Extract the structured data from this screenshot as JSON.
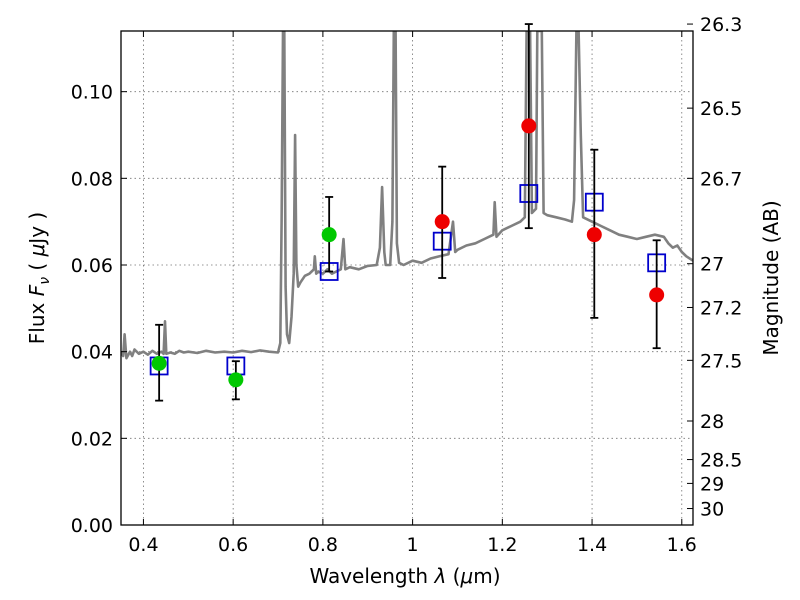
{
  "chart_data": {
    "type": "scatter",
    "xlabel_prefix": "Wavelength  ",
    "xlabel_symbol": "λ",
    "xlabel_unit_open": " (",
    "xlabel_unit": "μ",
    "xlabel_unit_close": "m)",
    "ylabel_prefix": "Flux  ",
    "ylabel_symbol": "F",
    "ylabel_subscript": "ν",
    "ylabel_unit_open": "  ( ",
    "ylabel_unit": "μ",
    "ylabel_unit_close": "Jy )",
    "y2label": "Magnitude (AB)",
    "xlim": [
      0.35,
      1.625
    ],
    "ylim": [
      0.0,
      0.114
    ],
    "grid": true,
    "colors": {
      "spectrum": "#808080",
      "model": "#0000cc",
      "green": "#00c800",
      "red": "#ee0000",
      "error": "#000000"
    },
    "x_ticks": [
      {
        "value": 0.4,
        "label": "0.4"
      },
      {
        "value": 0.6,
        "label": "0.6"
      },
      {
        "value": 0.8,
        "label": "0.8"
      },
      {
        "value": 1.0,
        "label": "1"
      },
      {
        "value": 1.2,
        "label": "1.2"
      },
      {
        "value": 1.4,
        "label": "1.4"
      },
      {
        "value": 1.6,
        "label": "1.6"
      }
    ],
    "y_ticks": [
      {
        "value": 0.0,
        "label": "0.00"
      },
      {
        "value": 0.02,
        "label": "0.02"
      },
      {
        "value": 0.04,
        "label": "0.04"
      },
      {
        "value": 0.06,
        "label": "0.06"
      },
      {
        "value": 0.08,
        "label": "0.08"
      },
      {
        "value": 0.1,
        "label": "0.10"
      }
    ],
    "mag_ticks": [
      {
        "value": 0.1156,
        "label": "26.3"
      },
      {
        "value": 0.0962,
        "label": "26.5"
      },
      {
        "value": 0.08,
        "label": "26.7"
      },
      {
        "value": 0.0603,
        "label": "27"
      },
      {
        "value": 0.0502,
        "label": "27.2"
      },
      {
        "value": 0.038,
        "label": "27.5"
      },
      {
        "value": 0.024,
        "label": "28"
      },
      {
        "value": 0.0151,
        "label": "28.5"
      },
      {
        "value": 0.0096,
        "label": "29"
      },
      {
        "value": 0.0038,
        "label": "30"
      }
    ],
    "model_points": [
      {
        "x": 0.435,
        "y": 0.0367
      },
      {
        "x": 0.606,
        "y": 0.0367
      },
      {
        "x": 0.814,
        "y": 0.0585
      },
      {
        "x": 1.066,
        "y": 0.0655
      },
      {
        "x": 1.259,
        "y": 0.0765
      },
      {
        "x": 1.405,
        "y": 0.0745
      },
      {
        "x": 1.544,
        "y": 0.0605
      }
    ],
    "observed_points": [
      {
        "x": 0.435,
        "y": 0.0373,
        "err_low": 0.0287,
        "err_high": 0.0462,
        "color": "green"
      },
      {
        "x": 0.606,
        "y": 0.0335,
        "err_low": 0.029,
        "err_high": 0.0378,
        "color": "green"
      },
      {
        "x": 0.814,
        "y": 0.067,
        "err_low": 0.0585,
        "err_high": 0.0757,
        "color": "green"
      },
      {
        "x": 1.066,
        "y": 0.07,
        "err_low": 0.057,
        "err_high": 0.0827,
        "color": "red"
      },
      {
        "x": 1.259,
        "y": 0.0921,
        "err_low": 0.0685,
        "err_high": 0.1156,
        "color": "red"
      },
      {
        "x": 1.405,
        "y": 0.067,
        "err_low": 0.0478,
        "err_high": 0.0866,
        "color": "red"
      },
      {
        "x": 1.544,
        "y": 0.0531,
        "err_low": 0.0408,
        "err_high": 0.0657,
        "color": "red"
      }
    ],
    "spectrum": [
      [
        0.35,
        0.04
      ],
      [
        0.355,
        0.039
      ],
      [
        0.358,
        0.044
      ],
      [
        0.362,
        0.0385
      ],
      [
        0.37,
        0.04
      ],
      [
        0.375,
        0.039
      ],
      [
        0.38,
        0.0405
      ],
      [
        0.39,
        0.0395
      ],
      [
        0.4,
        0.04
      ],
      [
        0.41,
        0.0393
      ],
      [
        0.42,
        0.0402
      ],
      [
        0.43,
        0.0395
      ],
      [
        0.44,
        0.04
      ],
      [
        0.445,
        0.0395
      ],
      [
        0.448,
        0.047
      ],
      [
        0.451,
        0.0395
      ],
      [
        0.46,
        0.0398
      ],
      [
        0.47,
        0.0395
      ],
      [
        0.48,
        0.0402
      ],
      [
        0.49,
        0.0398
      ],
      [
        0.5,
        0.04
      ],
      [
        0.52,
        0.0397
      ],
      [
        0.54,
        0.0402
      ],
      [
        0.56,
        0.0398
      ],
      [
        0.58,
        0.04
      ],
      [
        0.6,
        0.0398
      ],
      [
        0.62,
        0.0402
      ],
      [
        0.64,
        0.0399
      ],
      [
        0.66,
        0.0403
      ],
      [
        0.68,
        0.04
      ],
      [
        0.7,
        0.0398
      ],
      [
        0.705,
        0.042
      ],
      [
        0.708,
        0.07
      ],
      [
        0.711,
        0.114
      ],
      [
        0.714,
        0.114
      ],
      [
        0.717,
        0.055
      ],
      [
        0.72,
        0.044
      ],
      [
        0.725,
        0.042
      ],
      [
        0.73,
        0.048
      ],
      [
        0.735,
        0.058
      ],
      [
        0.738,
        0.09
      ],
      [
        0.741,
        0.06
      ],
      [
        0.745,
        0.055
      ],
      [
        0.75,
        0.056
      ],
      [
        0.76,
        0.0575
      ],
      [
        0.77,
        0.058
      ],
      [
        0.78,
        0.059
      ],
      [
        0.782,
        0.062
      ],
      [
        0.785,
        0.058
      ],
      [
        0.79,
        0.0585
      ],
      [
        0.8,
        0.058
      ],
      [
        0.81,
        0.059
      ],
      [
        0.82,
        0.058
      ],
      [
        0.83,
        0.0585
      ],
      [
        0.84,
        0.059
      ],
      [
        0.846,
        0.066
      ],
      [
        0.85,
        0.059
      ],
      [
        0.86,
        0.0595
      ],
      [
        0.88,
        0.059
      ],
      [
        0.9,
        0.0598
      ],
      [
        0.92,
        0.06
      ],
      [
        0.927,
        0.064
      ],
      [
        0.932,
        0.078
      ],
      [
        0.937,
        0.063
      ],
      [
        0.94,
        0.06
      ],
      [
        0.95,
        0.06
      ],
      [
        0.955,
        0.07
      ],
      [
        0.958,
        0.114
      ],
      [
        0.962,
        0.114
      ],
      [
        0.965,
        0.065
      ],
      [
        0.97,
        0.0605
      ],
      [
        0.98,
        0.06
      ],
      [
        1.0,
        0.061
      ],
      [
        1.02,
        0.0605
      ],
      [
        1.04,
        0.0615
      ],
      [
        1.06,
        0.062
      ],
      [
        1.08,
        0.0625
      ],
      [
        1.09,
        0.07
      ],
      [
        1.095,
        0.063
      ],
      [
        1.1,
        0.0635
      ],
      [
        1.12,
        0.0645
      ],
      [
        1.14,
        0.065
      ],
      [
        1.16,
        0.066
      ],
      [
        1.18,
        0.067
      ],
      [
        1.183,
        0.0745
      ],
      [
        1.187,
        0.0665
      ],
      [
        1.2,
        0.068
      ],
      [
        1.22,
        0.069
      ],
      [
        1.24,
        0.07
      ],
      [
        1.25,
        0.071
      ],
      [
        1.254,
        0.114
      ],
      [
        1.262,
        0.114
      ],
      [
        1.266,
        0.072
      ],
      [
        1.275,
        0.073
      ],
      [
        1.278,
        0.114
      ],
      [
        1.288,
        0.114
      ],
      [
        1.292,
        0.072
      ],
      [
        1.3,
        0.0715
      ],
      [
        1.32,
        0.071
      ],
      [
        1.34,
        0.0705
      ],
      [
        1.355,
        0.07
      ],
      [
        1.36,
        0.075
      ],
      [
        1.365,
        0.114
      ],
      [
        1.37,
        0.114
      ],
      [
        1.375,
        0.09
      ],
      [
        1.38,
        0.071
      ],
      [
        1.4,
        0.07
      ],
      [
        1.42,
        0.069
      ],
      [
        1.44,
        0.068
      ],
      [
        1.46,
        0.067
      ],
      [
        1.48,
        0.0665
      ],
      [
        1.5,
        0.066
      ],
      [
        1.52,
        0.0665
      ],
      [
        1.54,
        0.067
      ],
      [
        1.56,
        0.0665
      ],
      [
        1.57,
        0.065
      ],
      [
        1.58,
        0.064
      ],
      [
        1.59,
        0.0645
      ],
      [
        1.6,
        0.063
      ],
      [
        1.61,
        0.062
      ],
      [
        1.625,
        0.061
      ]
    ]
  }
}
